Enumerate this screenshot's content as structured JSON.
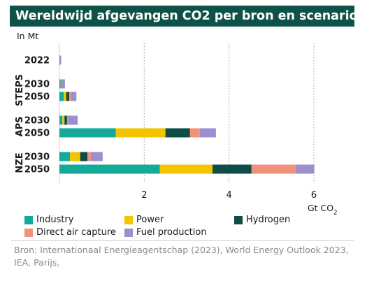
{
  "chart_data": {
    "type": "bar",
    "orientation": "horizontal",
    "stacked": true,
    "title": "Wereldwijd afgevangen CO2 per bron en scenario",
    "unit_label": "In Mt",
    "xlabel": "Gt CO",
    "xlabel_subscript": "2",
    "xlim": [
      0,
      6.5
    ],
    "xticks": [
      "2",
      "4",
      "6"
    ],
    "grid": "vertical-dotted",
    "legend_position": "bottom",
    "groups": [
      {
        "name": "",
        "rows": [
          "2022"
        ]
      },
      {
        "name": "STEPS",
        "rows": [
          "2030",
          "2050"
        ]
      },
      {
        "name": "APS",
        "rows": [
          "2030",
          "2050"
        ]
      },
      {
        "name": "NZE",
        "rows": [
          "2030",
          "2050"
        ]
      }
    ],
    "categories": [
      "2022",
      "STEPS 2030",
      "STEPS 2050",
      "APS 2030",
      "APS 2050",
      "NZE 2030",
      "NZE 2050"
    ],
    "series": [
      {
        "name": "Industry",
        "color": "#15a99a",
        "values": [
          0.01,
          0.03,
          0.1,
          0.07,
          1.33,
          0.25,
          2.37
        ]
      },
      {
        "name": "Power",
        "color": "#f5c400",
        "values": [
          0.0,
          0.02,
          0.06,
          0.05,
          1.17,
          0.24,
          1.24
        ]
      },
      {
        "name": "Hydrogen",
        "color": "#0d4d45",
        "values": [
          0.0,
          0.01,
          0.07,
          0.06,
          0.58,
          0.17,
          0.92
        ]
      },
      {
        "name": "Direct air capture",
        "color": "#f0917a",
        "values": [
          0.0,
          0.01,
          0.05,
          0.02,
          0.23,
          0.08,
          1.05
        ]
      },
      {
        "name": "Fuel production",
        "color": "#9b8fd1",
        "values": [
          0.03,
          0.06,
          0.12,
          0.23,
          0.38,
          0.28,
          0.43
        ]
      }
    ]
  },
  "source_text": "Bron:  Internationaal Energieagentschap (2023), World Energy Outlook 2023, IEA, Parijs,"
}
